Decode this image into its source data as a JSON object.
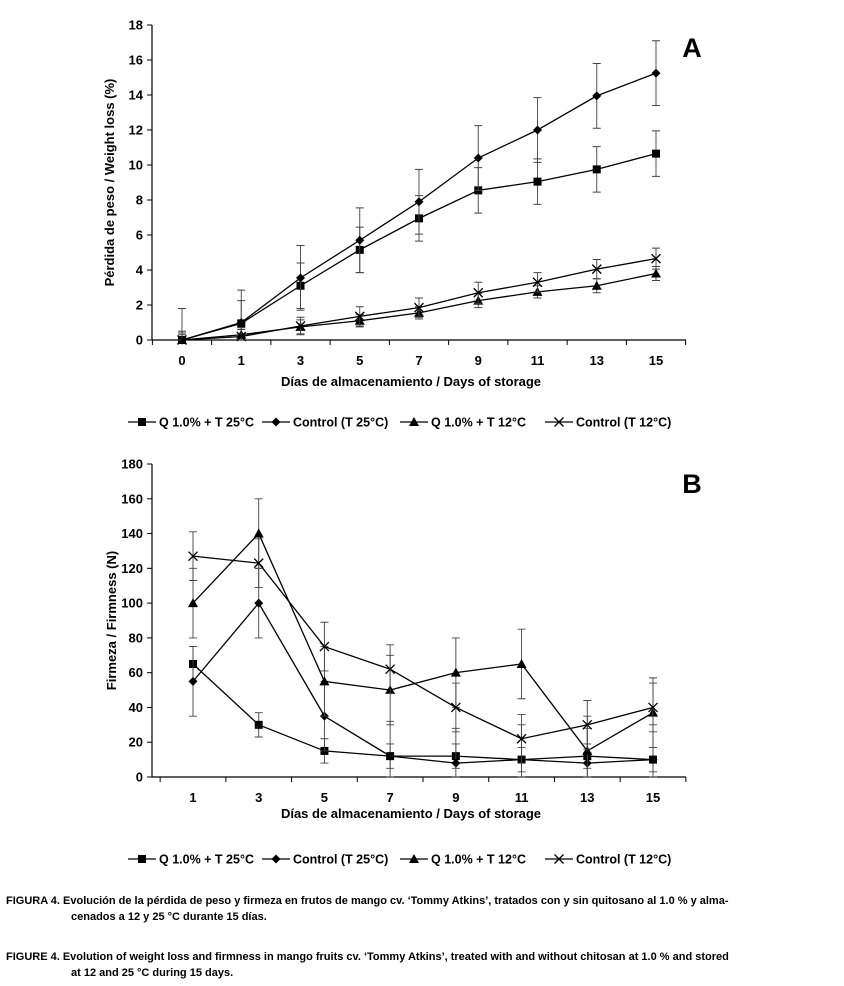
{
  "charts": [
    {
      "id": "A",
      "panel_label": "A",
      "xlabel": "Días de almacenamiento / Days of storage",
      "ylabel": "Pérdida de peso / Weight loss (%)",
      "ylim": [
        0,
        18
      ],
      "yticks": [
        0,
        2,
        4,
        6,
        8,
        10,
        12,
        14,
        16,
        18
      ],
      "ytick_labels": [
        "0",
        "2",
        "4",
        "6",
        "8",
        "10",
        "12",
        "14",
        "16",
        "18"
      ],
      "x": [
        0,
        1,
        3,
        5,
        7,
        9,
        11,
        13,
        15
      ],
      "xtick_labels": [
        "0",
        "1",
        "3",
        "5",
        "7",
        "9",
        "11",
        "13",
        "15"
      ]
    },
    {
      "id": "B",
      "panel_label": "B",
      "xlabel": "Días de almacenamiento / Days of storage",
      "ylabel": "Firmeza / Firmness (N)",
      "ylim": [
        0,
        180
      ],
      "yticks": [
        0,
        20,
        40,
        60,
        80,
        100,
        120,
        140,
        160,
        180
      ],
      "ytick_labels": [
        "0",
        "20",
        "40",
        "60",
        "80",
        "100",
        "120",
        "140",
        "160",
        "180"
      ],
      "x": [
        1,
        3,
        5,
        7,
        9,
        11,
        13,
        15
      ],
      "xtick_labels": [
        "1",
        "3",
        "5",
        "7",
        "9",
        "11",
        "13",
        "15"
      ]
    }
  ],
  "legend": [
    {
      "name": "Q 1.0% + T 25°C",
      "marker": "square"
    },
    {
      "name": "Control (T 25°C)",
      "marker": "diamond"
    },
    {
      "name": "Q 1.0% + T 12°C",
      "marker": "triangle"
    },
    {
      "name": "Control (T 12°C)",
      "marker": "x"
    }
  ],
  "chart_data": [
    {
      "type": "line",
      "title": "A",
      "xlabel": "Días de almacenamiento / Days of storage",
      "ylabel": "Pérdida de peso / Weight loss (%)",
      "x": [
        0,
        1,
        3,
        5,
        7,
        9,
        11,
        13,
        15
      ],
      "ylim": [
        0,
        18
      ],
      "series": [
        {
          "name": "Q 1.0% + T 25°C",
          "marker": "square",
          "values": [
            0,
            0.95,
            3.1,
            5.15,
            6.95,
            8.55,
            9.05,
            9.75,
            10.65
          ],
          "errors": [
            0.5,
            1.3,
            1.3,
            1.3,
            1.3,
            1.3,
            1.3,
            1.3,
            1.3
          ]
        },
        {
          "name": "Control (T 25°C)",
          "marker": "diamond",
          "values": [
            0,
            1.0,
            3.55,
            5.7,
            7.9,
            10.4,
            12.0,
            13.95,
            15.25
          ],
          "errors": [
            1.8,
            1.85,
            1.85,
            1.85,
            1.85,
            1.85,
            1.85,
            1.85,
            1.85
          ]
        },
        {
          "name": "Q 1.0% + T 12°C",
          "marker": "triangle",
          "values": [
            0,
            0.3,
            0.75,
            1.1,
            1.55,
            2.25,
            2.75,
            3.1,
            3.8
          ],
          "errors": [
            0.3,
            0.3,
            0.4,
            0.35,
            0.35,
            0.4,
            0.35,
            0.4,
            0.4
          ]
        },
        {
          "name": "Control (T 12°C)",
          "marker": "x",
          "values": [
            0,
            0.2,
            0.8,
            1.35,
            1.85,
            2.7,
            3.3,
            4.05,
            4.65
          ],
          "errors": [
            0.4,
            0.5,
            0.5,
            0.55,
            0.55,
            0.6,
            0.55,
            0.55,
            0.6
          ]
        }
      ]
    },
    {
      "type": "line",
      "title": "B",
      "xlabel": "Días de almacenamiento / Days of storage",
      "ylabel": "Firmeza / Firmness (N)",
      "x": [
        1,
        3,
        5,
        7,
        9,
        11,
        13,
        15
      ],
      "ylim": [
        0,
        180
      ],
      "series": [
        {
          "name": "Q 1.0% + T 25°C",
          "marker": "square",
          "values": [
            65,
            30,
            15,
            12,
            12,
            10,
            12,
            10
          ],
          "errors": [
            10,
            7,
            7,
            7,
            7,
            7,
            7,
            7
          ]
        },
        {
          "name": "Control (T 25°C)",
          "marker": "diamond",
          "values": [
            55,
            100,
            35,
            12,
            8,
            10,
            8,
            10
          ],
          "errors": [
            20,
            20,
            20,
            20,
            20,
            20,
            20,
            20
          ]
        },
        {
          "name": "Q 1.0% + T 12°C",
          "marker": "triangle",
          "values": [
            100,
            140,
            55,
            50,
            60,
            65,
            15,
            37
          ],
          "errors": [
            20,
            20,
            20,
            20,
            20,
            20,
            20,
            20
          ]
        },
        {
          "name": "Control (T 12°C)",
          "marker": "x",
          "values": [
            127,
            123,
            75,
            62,
            40,
            22,
            30,
            40
          ],
          "errors": [
            14,
            14,
            14,
            14,
            14,
            14,
            14,
            14
          ]
        }
      ]
    }
  ],
  "captions": {
    "es": {
      "lead": "FIGURA 4. Evolución de la pérdida de peso y firmeza en frutos de mango cv. ‘Tommy Atkins’, tratados con y sin quitosano al 1.0 % y alma-",
      "rest": "cenados a 12 y 25 °C durante 15 días."
    },
    "en": {
      "lead": "FIGURE 4. Evolution of weight loss and firmness in mango fruits cv. ‘Tommy Atkins’, treated with and without chitosan at 1.0 % and stored",
      "rest": "at 12 and 25 °C during 15 days."
    }
  }
}
